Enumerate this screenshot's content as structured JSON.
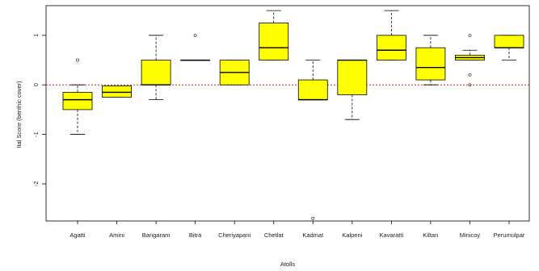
{
  "chart_data": {
    "type": "boxplot",
    "title": "",
    "xlabel": "Atolls",
    "ylabel": "Ital Score (benthic cover)",
    "ylim": [
      -2.75,
      1.6
    ],
    "yticks": [
      -2,
      -1,
      0,
      1
    ],
    "grid": false,
    "reference_line": {
      "value": 0,
      "color": "#e0201e",
      "style": "dotted"
    },
    "box_fill": "#ffff00",
    "categories": [
      "Agatti",
      "Amini",
      "Bangaram",
      "Bitra",
      "Cheriyapani",
      "Chetlat",
      "Kadmat",
      "Kalpeni",
      "Kavaratti",
      "Kiltan",
      "Minicoy",
      "Perumulpar"
    ],
    "boxes": [
      {
        "category": "Agatti",
        "whisker_low": -1.0,
        "q1": -0.5,
        "median": -0.3,
        "q3": -0.15,
        "whisker_high": 0.0,
        "outliers": [
          0.5
        ]
      },
      {
        "category": "Amini",
        "whisker_low": -0.25,
        "q1": -0.25,
        "median": -0.15,
        "q3": -0.02,
        "whisker_high": -0.02,
        "outliers": []
      },
      {
        "category": "Bangaram",
        "whisker_low": -0.3,
        "q1": 0.0,
        "median": 0.0,
        "q3": 0.5,
        "whisker_high": 1.0,
        "outliers": []
      },
      {
        "category": "Bitra",
        "whisker_low": 0.5,
        "q1": 0.5,
        "median": 0.5,
        "q3": 0.5,
        "whisker_high": 0.5,
        "outliers": [
          1.0
        ]
      },
      {
        "category": "Cheriyapani",
        "whisker_low": 0.0,
        "q1": 0.0,
        "median": 0.25,
        "q3": 0.5,
        "whisker_high": 0.5,
        "outliers": []
      },
      {
        "category": "Chetlat",
        "whisker_low": 0.5,
        "q1": 0.5,
        "median": 0.75,
        "q3": 1.25,
        "whisker_high": 1.5,
        "outliers": []
      },
      {
        "category": "Kadmat",
        "whisker_low": -0.3,
        "q1": -0.3,
        "median": -0.3,
        "q3": 0.1,
        "whisker_high": 0.5,
        "outliers": [
          -2.7
        ]
      },
      {
        "category": "Kalpeni",
        "whisker_low": -0.7,
        "q1": -0.2,
        "median": 0.5,
        "q3": 0.5,
        "whisker_high": 0.5,
        "outliers": []
      },
      {
        "category": "Kavaratti",
        "whisker_low": 0.5,
        "q1": 0.5,
        "median": 0.7,
        "q3": 1.0,
        "whisker_high": 1.5,
        "outliers": []
      },
      {
        "category": "Kiltan",
        "whisker_low": 0.0,
        "q1": 0.1,
        "median": 0.35,
        "q3": 0.75,
        "whisker_high": 1.0,
        "outliers": []
      },
      {
        "category": "Minicoy",
        "whisker_low": 0.5,
        "q1": 0.5,
        "median": 0.55,
        "q3": 0.6,
        "whisker_high": 0.7,
        "outliers": [
          1.0,
          0.2,
          0.0
        ]
      },
      {
        "category": "Perumulpar",
        "whisker_low": 0.5,
        "q1": 0.75,
        "median": 0.75,
        "q3": 1.0,
        "whisker_high": 1.0,
        "outliers": []
      }
    ]
  }
}
